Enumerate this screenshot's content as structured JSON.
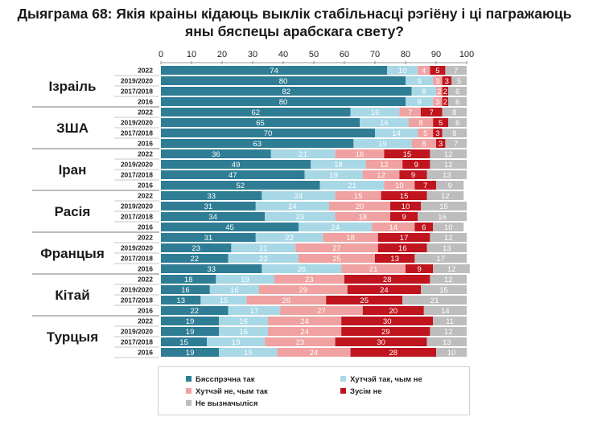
{
  "title_lines": [
    "Дыяграма 68: Якія краіны кідаюць выклік стабільнасці рэгіёну і ці пагражаюць",
    "яны бяспецы арабскага свету?"
  ],
  "colors": {
    "definitely_yes": "#2e7d95",
    "somewhat_yes": "#a8d8e6",
    "somewhat_no": "#f0a1a1",
    "definitely_no": "#c0141e",
    "undecided": "#bdbdbd"
  },
  "chart_data": {
    "type": "bar",
    "orientation": "horizontal",
    "stacked": true,
    "xlim": [
      0,
      100
    ],
    "xticks": [
      0,
      10,
      20,
      30,
      40,
      50,
      60,
      70,
      80,
      90,
      100
    ],
    "legend_position": "bottom",
    "series_names": [
      "Бясспрэчна так",
      "Хутчэй так, чым не",
      "Хутчэй не, чым так",
      "Зусім не",
      "Не вызначыліся"
    ],
    "series_keys": [
      "definitely_yes",
      "somewhat_yes",
      "somewhat_no",
      "definitely_no",
      "undecided"
    ],
    "groups": [
      {
        "country": "Ізраіль",
        "rows": [
          {
            "year": "2022",
            "values": [
              74,
              10,
              4,
              5,
              7
            ]
          },
          {
            "year": "2019/2020",
            "values": [
              80,
              9,
              3,
              3,
              5
            ]
          },
          {
            "year": "2017/2018",
            "values": [
              82,
              8,
              2,
              2,
              6
            ]
          },
          {
            "year": "2016",
            "values": [
              80,
              9,
              3,
              2,
              6
            ]
          }
        ]
      },
      {
        "country": "ЗША",
        "rows": [
          {
            "year": "2022",
            "values": [
              62,
              16,
              7,
              7,
              8
            ]
          },
          {
            "year": "2019/2020",
            "values": [
              65,
              16,
              8,
              5,
              6
            ]
          },
          {
            "year": "2017/2018",
            "values": [
              70,
              14,
              5,
              3,
              8
            ]
          },
          {
            "year": "2016",
            "values": [
              63,
              19,
              8,
              3,
              7
            ]
          }
        ]
      },
      {
        "country": "Іран",
        "rows": [
          {
            "year": "2022",
            "values": [
              36,
              21,
              16,
              15,
              12
            ]
          },
          {
            "year": "2019/2020",
            "values": [
              49,
              18,
              12,
              9,
              12
            ]
          },
          {
            "year": "2017/2018",
            "values": [
              47,
              19,
              12,
              9,
              13
            ]
          },
          {
            "year": "2016",
            "values": [
              52,
              21,
              10,
              7,
              9
            ]
          }
        ]
      },
      {
        "country": "Расія",
        "rows": [
          {
            "year": "2022",
            "values": [
              33,
              24,
              15,
              15,
              12
            ]
          },
          {
            "year": "2019/2020",
            "values": [
              31,
              24,
              20,
              10,
              15
            ]
          },
          {
            "year": "2017/2018",
            "values": [
              34,
              23,
              18,
              9,
              16
            ]
          },
          {
            "year": "2016",
            "values": [
              45,
              24,
              14,
              6,
              10
            ]
          }
        ]
      },
      {
        "country": "Францыя",
        "rows": [
          {
            "year": "2022",
            "values": [
              31,
              22,
              18,
              17,
              12
            ]
          },
          {
            "year": "2019/2020",
            "values": [
              23,
              21,
              27,
              16,
              13
            ]
          },
          {
            "year": "2017/2018",
            "values": [
              22,
              23,
              25,
              13,
              17
            ]
          },
          {
            "year": "2016",
            "values": [
              33,
              26,
              21,
              9,
              12
            ]
          }
        ]
      },
      {
        "country": "Кітай",
        "rows": [
          {
            "year": "2022",
            "values": [
              18,
              19,
              23,
              28,
              12
            ]
          },
          {
            "year": "2019/2020",
            "values": [
              16,
              16,
              29,
              24,
              15
            ]
          },
          {
            "year": "2017/2018",
            "values": [
              13,
              15,
              26,
              25,
              21
            ]
          },
          {
            "year": "2016",
            "values": [
              22,
              17,
              27,
              20,
              14
            ]
          }
        ]
      },
      {
        "country": "Турцыя",
        "rows": [
          {
            "year": "2022",
            "values": [
              19,
              16,
              24,
              30,
              11
            ]
          },
          {
            "year": "2019/2020",
            "values": [
              19,
              16,
              24,
              29,
              12
            ]
          },
          {
            "year": "2017/2018",
            "values": [
              15,
              19,
              23,
              30,
              13
            ]
          },
          {
            "year": "2016",
            "values": [
              19,
              19,
              24,
              28,
              10
            ]
          }
        ]
      }
    ]
  }
}
